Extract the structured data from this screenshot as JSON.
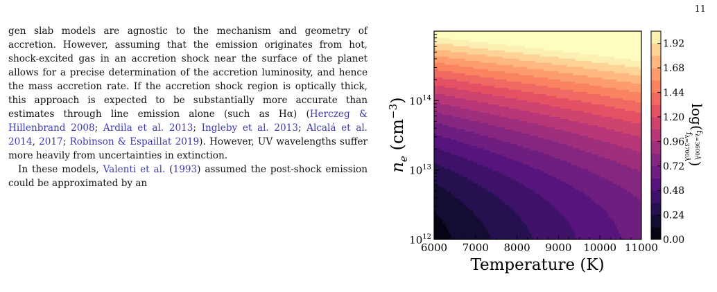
{
  "page_number": "11",
  "paragraph1": [
    {
      "t": "gen slab models are agnostic to the mechanism and geometry of accretion. However, assuming that the emission originates from hot, shock-excited gas in an accretion shock near the surface of the planet allows for a precise determination of the accretion luminosity, and hence the mass accretion rate. If the accretion shock region is optically thick, this approach is expected to be substantially more accurate than estimates through line emission alone (such as Hα) ("
    },
    {
      "t": "Herczeg & Hillenbrand 2008",
      "cite": true
    },
    {
      "t": "; "
    },
    {
      "t": "Ardila et al. 2013",
      "cite": true
    },
    {
      "t": "; "
    },
    {
      "t": "Ingleby et al. 2013",
      "cite": true
    },
    {
      "t": "; "
    },
    {
      "t": "Alcalá et al. 2014",
      "cite": true
    },
    {
      "t": ", "
    },
    {
      "t": "2017",
      "cite": true
    },
    {
      "t": "; "
    },
    {
      "t": "Robinson & Espaillat 2019",
      "cite": true
    },
    {
      "t": "). However, UV wavelengths suffer more heavily from uncertainties in extinction."
    }
  ],
  "paragraph2": [
    {
      "t": "In these models, "
    },
    {
      "t": "Valenti et al.",
      "cite": true
    },
    {
      "t": " ("
    },
    {
      "t": "1993",
      "cite": true
    },
    {
      "t": ") assumed the post-shock emission could be approximated by an"
    }
  ],
  "chart_data": {
    "type": "heatmap",
    "subtype": "filled-contour",
    "xlabel": "Temperature (K)",
    "ylabel": "n_e (cm^-3)",
    "x_ticks": [
      "6000",
      "7000",
      "8000",
      "9000",
      "10000",
      "11000"
    ],
    "x_tick_values": [
      6000,
      7000,
      8000,
      9000,
      10000,
      11000
    ],
    "xlim": [
      6000,
      11000
    ],
    "y_scale": "log",
    "y_ticks": [
      "10^12",
      "10^13",
      "10^14"
    ],
    "y_tick_values": [
      1000000000000.0,
      10000000000000.0,
      100000000000000.0
    ],
    "ylim": [
      1000000000000.0,
      1000000000000000.0
    ],
    "colorbar": {
      "label": "log(f_λ=3600Å / f_λ=3700Å)",
      "ticks": [
        "0.00",
        "0.24",
        "0.48",
        "0.72",
        "0.96",
        "1.20",
        "1.44",
        "1.68",
        "1.92"
      ],
      "tick_values": [
        0.0,
        0.24,
        0.48,
        0.72,
        0.96,
        1.2,
        1.44,
        1.68,
        1.92
      ],
      "range": [
        0.0,
        2.04
      ],
      "colormap": [
        "#000004",
        "#1d1147",
        "#51127c",
        "#822681",
        "#b73779",
        "#e75263",
        "#fc8961",
        "#fec287",
        "#fcfdbf"
      ]
    },
    "z_description": "Ratio is highest (~2.0) at high density (n_e ~ 1e15) and high temperature; lowest (~0) at low density (1e12) and low temperature (6000 K)."
  }
}
